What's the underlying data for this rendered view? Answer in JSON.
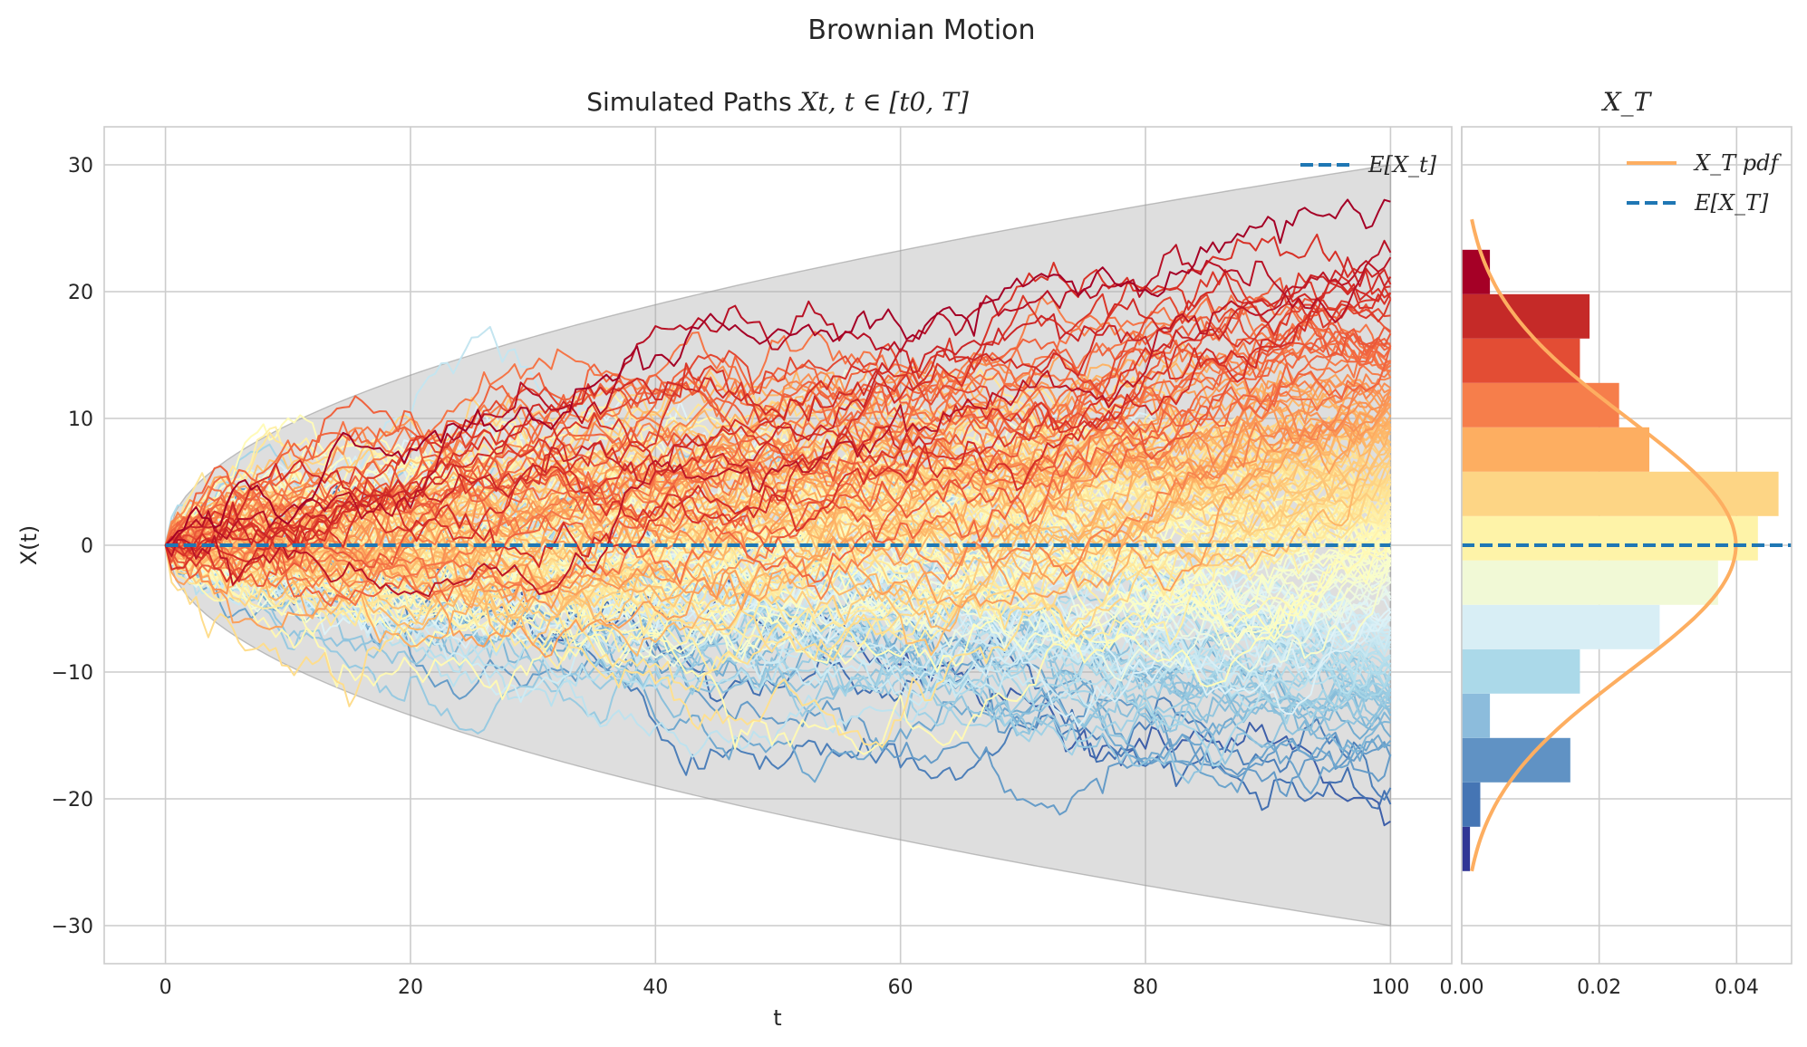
{
  "figure": {
    "suptitle": "Brownian Motion"
  },
  "chart_data": [
    {
      "type": "line",
      "title": "Simulated Paths X_t, t ∈ [t_0, T]",
      "title_plain": "Simulated Paths ",
      "title_math": "Xt, t ∈ [t0, T]",
      "xlabel": "t",
      "ylabel": "X(t)",
      "xlim": [
        -5,
        105
      ],
      "ylim": [
        -33,
        33
      ],
      "xticks": [
        0,
        20,
        40,
        60,
        80,
        100
      ],
      "yticks": [
        -30,
        -20,
        -10,
        0,
        10,
        20,
        30
      ],
      "xtick_labels": [
        "0",
        "20",
        "40",
        "60",
        "80",
        "100"
      ],
      "ytick_labels": [
        "−30",
        "−20",
        "−10",
        "0",
        "10",
        "20",
        "30"
      ],
      "grid": true,
      "legend_position": "top-right",
      "legend": [
        "E[X_t]"
      ],
      "mean_line": {
        "name": "E[X_t]",
        "value": 0,
        "x": [
          0,
          100
        ],
        "color": "#1f77b4"
      },
      "envelope": {
        "t_range": [
          0,
          100
        ],
        "upper": "3·sqrt(t)",
        "lower": "-3·sqrt(t)",
        "max_abs": 30,
        "color": "#a9a9a9"
      },
      "paths": {
        "count": 200,
        "t_range": [
          0,
          100
        ],
        "n_steps": 200,
        "colormap": "RdYlBu_r",
        "note_colors": [
          "#313695",
          "#4575b4",
          "#74add1",
          "#abd9e9",
          "#e0f3f8",
          "#ffffbf",
          "#fee090",
          "#fdae61",
          "#f46d43",
          "#d73027",
          "#a50026"
        ]
      }
    },
    {
      "type": "bar",
      "orientation": "horizontal",
      "title": "X_T",
      "xlim": [
        0,
        0.048
      ],
      "ylim": [
        -33,
        33
      ],
      "xticks": [
        0,
        0.02,
        0.04
      ],
      "xtick_labels": [
        "0.00",
        "0.02",
        "0.04"
      ],
      "grid": true,
      "legend_position": "top-right",
      "legend": [
        "X_T pdf",
        "E[X_T]"
      ],
      "bins": [
        {
          "y0": -25.7,
          "y1": -22.2,
          "density": 0.0012,
          "color": "#313695"
        },
        {
          "y0": -22.2,
          "y1": -18.7,
          "density": 0.0027,
          "color": "#4575b4"
        },
        {
          "y0": -18.7,
          "y1": -15.2,
          "density": 0.0158,
          "color": "#6092c4"
        },
        {
          "y0": -15.2,
          "y1": -11.7,
          "density": 0.0041,
          "color": "#8cbcdc"
        },
        {
          "y0": -11.7,
          "y1": -8.2,
          "density": 0.0172,
          "color": "#abd9e9"
        },
        {
          "y0": -8.2,
          "y1": -4.7,
          "density": 0.0288,
          "color": "#d8eef5"
        },
        {
          "y0": -4.7,
          "y1": -1.2,
          "density": 0.0373,
          "color": "#f1f9d6"
        },
        {
          "y0": -1.2,
          "y1": 2.3,
          "density": 0.0431,
          "color": "#fef3a8"
        },
        {
          "y0": 2.3,
          "y1": 5.8,
          "density": 0.0461,
          "color": "#fdd585"
        },
        {
          "y0": 5.8,
          "y1": 9.3,
          "density": 0.0273,
          "color": "#fdae61"
        },
        {
          "y0": 9.3,
          "y1": 12.8,
          "density": 0.0229,
          "color": "#f67e4b"
        },
        {
          "y0": 12.8,
          "y1": 16.3,
          "density": 0.0172,
          "color": "#e34d34"
        },
        {
          "y0": 16.3,
          "y1": 19.8,
          "density": 0.0186,
          "color": "#c52a28"
        },
        {
          "y0": 19.8,
          "y1": 23.3,
          "density": 0.0041,
          "color": "#a50026"
        }
      ],
      "pdf": {
        "name": "X_T pdf",
        "distribution": "normal",
        "mean": 0,
        "std": 10,
        "y_range": [
          -25.7,
          25.7
        ],
        "color": "#fdae61"
      },
      "mean_line": {
        "name": "E[X_T]",
        "value": 0,
        "color": "#1f77b4"
      }
    }
  ]
}
